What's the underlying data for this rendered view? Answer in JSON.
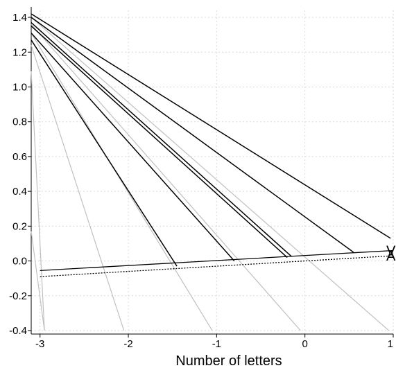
{
  "chart_data": {
    "type": "line",
    "title": "",
    "xlabel": "Number of letters",
    "ylabel": "",
    "xlim": [
      -3.1,
      1.0
    ],
    "ylim": [
      -0.42,
      1.44
    ],
    "xticks": [
      -3,
      -2,
      -1,
      0,
      1
    ],
    "yticks": [
      -0.4,
      -0.2,
      0.0,
      0.2,
      0.4,
      0.6,
      0.8,
      1.0,
      1.2,
      1.4
    ],
    "ytick_labels": [
      "-0.4",
      "-0.2",
      "0.0",
      "0.2",
      "0.4",
      "0.6",
      "0.8",
      "1.0",
      "1.2",
      "1.4"
    ],
    "xtick_labels": [
      "-3",
      "-2",
      "-1",
      "0",
      "1"
    ],
    "grid": true,
    "colors": {
      "dark": "#000000",
      "light": "#c0c0c0",
      "grid": "#d9d9d9"
    },
    "reference_lines": [
      {
        "label": "V",
        "style": "solid",
        "points": [
          [
            -3.0,
            -0.055
          ],
          [
            1.0,
            0.06
          ]
        ]
      },
      {
        "label": "A",
        "style": "dotted",
        "points": [
          [
            -3.0,
            -0.09
          ],
          [
            1.0,
            0.03
          ]
        ]
      }
    ],
    "series": [
      {
        "style": "dark",
        "points": [
          [
            -3.1,
            1.42
          ],
          [
            0.97,
            0.13
          ]
        ]
      },
      {
        "style": "dark",
        "points": [
          [
            -3.1,
            1.4
          ],
          [
            0.55,
            0.05
          ]
        ]
      },
      {
        "style": "dark",
        "points": [
          [
            -3.1,
            1.37
          ],
          [
            -0.15,
            0.025
          ]
        ]
      },
      {
        "style": "dark",
        "points": [
          [
            -3.1,
            1.35
          ],
          [
            -0.2,
            0.02
          ]
        ]
      },
      {
        "style": "dark",
        "points": [
          [
            -3.1,
            1.31
          ],
          [
            -0.8,
            0.0
          ]
        ]
      },
      {
        "style": "dark",
        "points": [
          [
            -3.1,
            1.27
          ],
          [
            -1.45,
            -0.03
          ]
        ]
      },
      {
        "style": "light",
        "points": [
          [
            -3.1,
            1.4
          ],
          [
            0.95,
            -0.4
          ]
        ]
      },
      {
        "style": "light",
        "points": [
          [
            -3.1,
            1.36
          ],
          [
            -0.05,
            -0.4
          ]
        ]
      },
      {
        "style": "light",
        "points": [
          [
            -3.1,
            1.31
          ],
          [
            -1.05,
            -0.4
          ]
        ]
      },
      {
        "style": "light",
        "points": [
          [
            -3.1,
            1.24
          ],
          [
            -2.05,
            -0.4
          ]
        ]
      },
      {
        "style": "light",
        "points": [
          [
            -3.1,
            1.09
          ],
          [
            -2.95,
            -0.4
          ]
        ]
      },
      {
        "style": "light",
        "points": [
          [
            -3.1,
            0.17
          ],
          [
            -2.95,
            -0.4
          ]
        ]
      }
    ]
  }
}
